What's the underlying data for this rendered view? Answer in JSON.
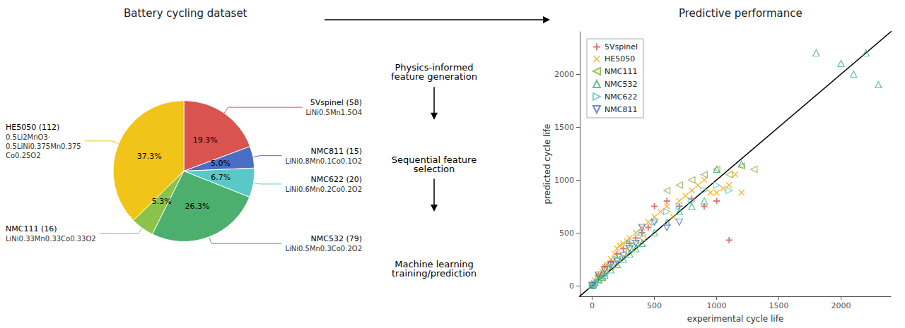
{
  "chart_data": [
    {
      "type": "pie",
      "title": "Battery cycling dataset",
      "categories": [
        "5Vspinel (58)",
        "NMC811 (15)",
        "NMC622 (20)",
        "NMC532 (79)",
        "NMC111 (16)",
        "HE5050 (112)"
      ],
      "formulas": [
        [
          "LiNi0.5Mn1.5O4"
        ],
        [
          "LiNi0.8Mn0.1Co0.1O2"
        ],
        [
          "LiNi0.6Mn0.2Co0.2O2"
        ],
        [
          "LiNi0.5Mn0.3Co0.2O2"
        ],
        [
          "LiNi0.33Mn0.33Co0.33O2"
        ],
        [
          "0.5Li2MnO3·",
          "0.5LiNi0.375Mn0.375",
          "Co0.25O2"
        ]
      ],
      "values": [
        19.3,
        5.0,
        6.7,
        26.3,
        5.3,
        37.3
      ],
      "value_labels": [
        "19.3%",
        "5.0%",
        "6.7%",
        "26.3%",
        "5.3%",
        "37.3%"
      ],
      "colors": [
        "#d9534f",
        "#4a6ec3",
        "#5bc8c8",
        "#4caf6e",
        "#8bc34a",
        "#f0c419"
      ],
      "data_labels": true
    },
    {
      "type": "flow",
      "annotations": [
        "Physics-informed\nfeature generation",
        "Sequential feature\nselection",
        "Machine learning\ntraining/prediction"
      ]
    },
    {
      "type": "scatter",
      "title": "Predictive performance",
      "xlabel": "experimental cycle life",
      "ylabel": "predicted cycle life",
      "xlim": [
        -100,
        2400
      ],
      "ylim": [
        -100,
        2400
      ],
      "xticks": [
        0,
        500,
        1000,
        1500,
        2000
      ],
      "yticks": [
        0,
        500,
        1000,
        1500,
        2000
      ],
      "grid": false,
      "legend": "upper left",
      "reference_line": {
        "x": [
          -200,
          2600
        ],
        "y": [
          -200,
          2600
        ],
        "color": "#000000"
      },
      "series": [
        {
          "name": "5Vspinel",
          "color": "#d9534f",
          "marker": "plus",
          "x": [
            50,
            100,
            150,
            200,
            250,
            300,
            350,
            400,
            450,
            500,
            600,
            700,
            800,
            900,
            1000,
            1100
          ],
          "values": [
            100,
            180,
            220,
            300,
            350,
            400,
            450,
            500,
            550,
            750,
            800,
            750,
            820,
            750,
            800,
            430
          ]
        },
        {
          "name": "HE5050",
          "color": "#f0a500",
          "marker": "x",
          "x": [
            0,
            20,
            50,
            80,
            100,
            120,
            150,
            180,
            200,
            220,
            250,
            280,
            300,
            350,
            400,
            450,
            500,
            550,
            600,
            650,
            700,
            750,
            800,
            850,
            900,
            950,
            1000,
            1050,
            1100,
            1150,
            1200
          ],
          "values": [
            20,
            50,
            100,
            130,
            180,
            200,
            250,
            300,
            350,
            380,
            400,
            420,
            450,
            500,
            550,
            600,
            650,
            700,
            750,
            650,
            800,
            850,
            900,
            950,
            1000,
            880,
            880,
            920,
            950,
            1050,
            880
          ]
        },
        {
          "name": "NMC111",
          "color": "#8aaf40",
          "marker": "triangle-left",
          "x": [
            0,
            20,
            50,
            80,
            100,
            150,
            200,
            250,
            300,
            350,
            400,
            600,
            700,
            800,
            900,
            1000,
            1100,
            1200,
            1300
          ],
          "values": [
            0,
            30,
            50,
            80,
            120,
            180,
            250,
            300,
            350,
            400,
            450,
            900,
            950,
            1000,
            1050,
            1100,
            1050,
            1130,
            1100
          ]
        },
        {
          "name": "NMC532",
          "color": "#3cb371",
          "marker": "triangle-up",
          "x": [
            0,
            10,
            20,
            50,
            80,
            100,
            150,
            200,
            250,
            300,
            350,
            400,
            500,
            600,
            700,
            800,
            900,
            1000,
            1200,
            1800,
            2000,
            2100,
            2200,
            2300
          ],
          "values": [
            0,
            10,
            30,
            60,
            80,
            100,
            150,
            200,
            250,
            300,
            350,
            400,
            500,
            600,
            700,
            750,
            800,
            1100,
            1150,
            2200,
            2100,
            2000,
            2200,
            1900
          ]
        },
        {
          "name": "NMC622",
          "color": "#5bc8c8",
          "marker": "triangle-right",
          "x": [
            0,
            20,
            50,
            100,
            150,
            200,
            300,
            400,
            500,
            600,
            700,
            800,
            900,
            1000,
            1100
          ],
          "values": [
            0,
            20,
            60,
            120,
            180,
            250,
            400,
            500,
            600,
            700,
            750,
            800,
            900,
            950,
            900
          ]
        },
        {
          "name": "NMC811",
          "color": "#4a6ec3",
          "marker": "triangle-down",
          "x": [
            0,
            50,
            100,
            150,
            200,
            250,
            300,
            350,
            400,
            500,
            600,
            700
          ],
          "values": [
            0,
            100,
            150,
            200,
            230,
            280,
            350,
            400,
            550,
            600,
            550,
            600
          ]
        }
      ]
    }
  ]
}
